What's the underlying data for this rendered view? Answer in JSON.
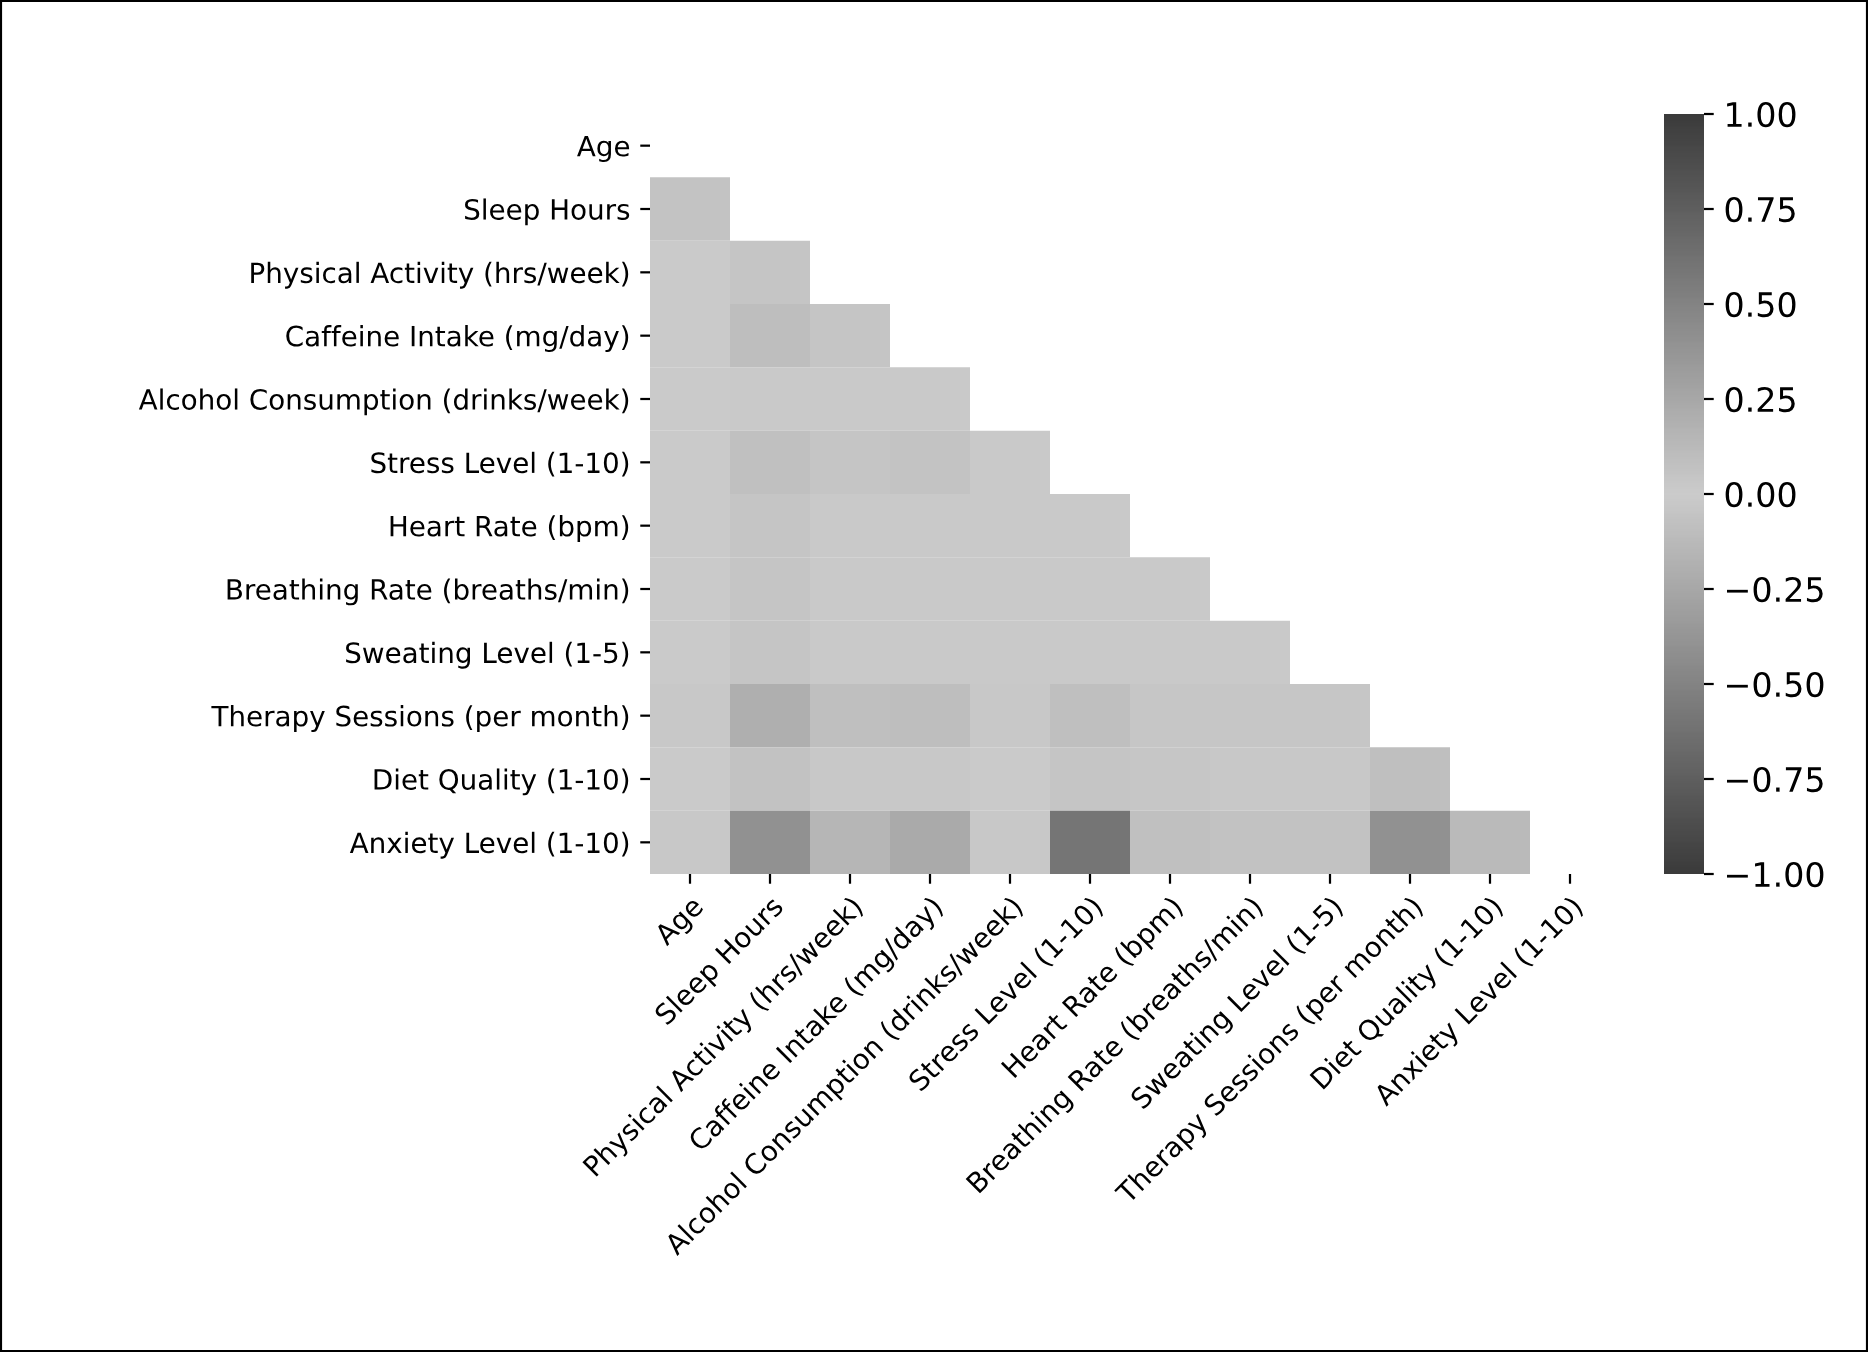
{
  "chart_data": {
    "type": "heatmap",
    "categories": [
      "Age",
      "Sleep Hours",
      "Physical Activity (hrs/week)",
      "Caffeine Intake (mg/day)",
      "Alcohol Consumption (drinks/week)",
      "Stress Level (1-10)",
      "Heart Rate (bpm)",
      "Breathing Rate (breaths/min)",
      "Sweating Level (1-5)",
      "Therapy Sessions (per month)",
      "Diet Quality (1-10)",
      "Anxiety Level (1-10)"
    ],
    "y_categories": [
      "Age",
      "Sleep Hours",
      "Physical Activity (hrs/week)",
      "Caffeine Intake (mg/day)",
      "Alcohol Consumption (drinks/week)",
      "Stress Level (1-10)",
      "Heart Rate (bpm)",
      "Breathing Rate (breaths/min)",
      "Sweating Level (1-5)",
      "Therapy Sessions (per month)",
      "Diet Quality (1-10)",
      "Anxiety Level (1-10)"
    ],
    "cells": [
      [
        null,
        null,
        null,
        null,
        null,
        null,
        null,
        null,
        null,
        null,
        null,
        null
      ],
      [
        0.06,
        null,
        null,
        null,
        null,
        null,
        null,
        null,
        null,
        null,
        null,
        null
      ],
      [
        0.01,
        0.05,
        null,
        null,
        null,
        null,
        null,
        null,
        null,
        null,
        null,
        null
      ],
      [
        0.01,
        -0.1,
        0.05,
        null,
        null,
        null,
        null,
        null,
        null,
        null,
        null,
        null
      ],
      [
        0.01,
        0.02,
        0.02,
        0.02,
        null,
        null,
        null,
        null,
        null,
        null,
        null,
        null
      ],
      [
        0.01,
        -0.08,
        -0.05,
        0.06,
        0.02,
        null,
        null,
        null,
        null,
        null,
        null,
        null
      ],
      [
        0.01,
        -0.05,
        0.02,
        0.02,
        0.02,
        0.02,
        null,
        null,
        null,
        null,
        null,
        null
      ],
      [
        0.01,
        -0.05,
        0.02,
        0.02,
        0.02,
        0.02,
        0.02,
        null,
        null,
        null,
        null,
        null
      ],
      [
        0.01,
        -0.05,
        0.02,
        0.02,
        0.02,
        0.02,
        0.02,
        0.02,
        null,
        null,
        null,
        null
      ],
      [
        0.03,
        -0.2,
        -0.09,
        0.1,
        0.03,
        0.09,
        0.04,
        0.04,
        0.04,
        null,
        null,
        null
      ],
      [
        0.01,
        0.07,
        0.03,
        -0.03,
        0.01,
        -0.05,
        -0.04,
        -0.03,
        -0.03,
        -0.09,
        null,
        null
      ],
      [
        0.03,
        -0.4,
        -0.15,
        0.23,
        0.03,
        0.6,
        0.08,
        0.07,
        0.07,
        0.4,
        -0.12,
        null
      ]
    ],
    "clim": [
      -1,
      1
    ],
    "cticks": [
      {
        "value": -1,
        "label": "−1.00"
      },
      {
        "value": -0.75,
        "label": "−0.75"
      },
      {
        "value": -0.5,
        "label": "−0.50"
      },
      {
        "value": -0.25,
        "label": "−0.25"
      },
      {
        "value": 0,
        "label": "0.00"
      },
      {
        "value": 0.25,
        "label": "0.25"
      },
      {
        "value": 0.5,
        "label": "0.50"
      },
      {
        "value": 0.75,
        "label": "0.75"
      },
      {
        "value": 1,
        "label": "1.00"
      }
    ]
  }
}
